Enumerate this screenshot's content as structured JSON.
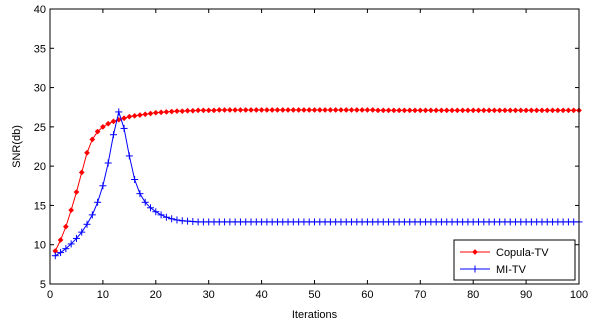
{
  "chart_data": {
    "type": "line",
    "xlabel": "Iterations",
    "ylabel": "SNR(db)",
    "xlim": [
      0,
      100
    ],
    "ylim": [
      5,
      40
    ],
    "xticks": [
      "0",
      "10",
      "20",
      "30",
      "40",
      "50",
      "60",
      "70",
      "80",
      "90",
      "100"
    ],
    "yticks": [
      "5",
      "10",
      "15",
      "20",
      "25",
      "30",
      "35",
      "40"
    ],
    "grid": false,
    "legend_position": "bottom-right",
    "series": [
      {
        "name": "Copula-TV",
        "color": "#ff0000",
        "marker": "diamond",
        "x": [
          1,
          2,
          3,
          4,
          5,
          6,
          7,
          8,
          9,
          10,
          11,
          12,
          13,
          14,
          15,
          16,
          17,
          18,
          19,
          20,
          21,
          22,
          23,
          24,
          25,
          26,
          27,
          28,
          29,
          30,
          31,
          32,
          33,
          34,
          35,
          36,
          37,
          38,
          39,
          40,
          41,
          42,
          43,
          44,
          45,
          46,
          47,
          48,
          49,
          50,
          51,
          52,
          53,
          54,
          55,
          56,
          57,
          58,
          59,
          60,
          61,
          62,
          63,
          64,
          65,
          66,
          67,
          68,
          69,
          70,
          71,
          72,
          73,
          74,
          75,
          76,
          77,
          78,
          79,
          80,
          81,
          82,
          83,
          84,
          85,
          86,
          87,
          88,
          89,
          90,
          91,
          92,
          93,
          94,
          95,
          96,
          97,
          98,
          99,
          100
        ],
        "y": [
          9.2,
          10.6,
          12.3,
          14.4,
          16.7,
          19.2,
          21.7,
          23.4,
          24.4,
          25.0,
          25.4,
          25.7,
          25.9,
          26.1,
          26.3,
          26.4,
          26.5,
          26.6,
          26.7,
          26.8,
          26.85,
          26.9,
          26.95,
          27.0,
          27.0,
          27.05,
          27.05,
          27.1,
          27.1,
          27.1,
          27.1,
          27.15,
          27.15,
          27.15,
          27.15,
          27.15,
          27.15,
          27.15,
          27.15,
          27.15,
          27.15,
          27.15,
          27.15,
          27.15,
          27.15,
          27.15,
          27.15,
          27.15,
          27.15,
          27.15,
          27.15,
          27.15,
          27.15,
          27.15,
          27.15,
          27.15,
          27.15,
          27.15,
          27.15,
          27.15,
          27.15,
          27.1,
          27.1,
          27.1,
          27.1,
          27.1,
          27.1,
          27.1,
          27.1,
          27.1,
          27.1,
          27.1,
          27.1,
          27.1,
          27.1,
          27.1,
          27.1,
          27.1,
          27.1,
          27.1,
          27.1,
          27.1,
          27.1,
          27.1,
          27.1,
          27.1,
          27.1,
          27.1,
          27.1,
          27.1,
          27.1,
          27.1,
          27.1,
          27.1,
          27.1,
          27.1,
          27.1,
          27.1,
          27.1,
          27.1
        ]
      },
      {
        "name": "MI-TV",
        "color": "#0000ff",
        "marker": "plus",
        "x": [
          1,
          2,
          3,
          4,
          5,
          6,
          7,
          8,
          9,
          10,
          11,
          12,
          13,
          14,
          15,
          16,
          17,
          18,
          19,
          20,
          21,
          22,
          23,
          24,
          25,
          26,
          27,
          28,
          29,
          30,
          31,
          32,
          33,
          34,
          35,
          36,
          37,
          38,
          39,
          40,
          41,
          42,
          43,
          44,
          45,
          46,
          47,
          48,
          49,
          50,
          51,
          52,
          53,
          54,
          55,
          56,
          57,
          58,
          59,
          60,
          61,
          62,
          63,
          64,
          65,
          66,
          67,
          68,
          69,
          70,
          71,
          72,
          73,
          74,
          75,
          76,
          77,
          78,
          79,
          80,
          81,
          82,
          83,
          84,
          85,
          86,
          87,
          88,
          89,
          90,
          91,
          92,
          93,
          94,
          95,
          96,
          97,
          98,
          99,
          100
        ],
        "y": [
          8.6,
          9.0,
          9.5,
          10.1,
          10.8,
          11.6,
          12.6,
          13.8,
          15.4,
          17.5,
          20.4,
          24.0,
          26.9,
          24.8,
          21.3,
          18.3,
          16.5,
          15.4,
          14.7,
          14.2,
          13.8,
          13.5,
          13.3,
          13.15,
          13.05,
          13.0,
          12.95,
          12.9,
          12.9,
          12.9,
          12.9,
          12.9,
          12.9,
          12.9,
          12.9,
          12.9,
          12.9,
          12.9,
          12.9,
          12.9,
          12.9,
          12.9,
          12.9,
          12.9,
          12.9,
          12.9,
          12.9,
          12.9,
          12.9,
          12.9,
          12.9,
          12.9,
          12.9,
          12.9,
          12.9,
          12.9,
          12.9,
          12.9,
          12.9,
          12.9,
          12.9,
          12.9,
          12.9,
          12.9,
          12.9,
          12.9,
          12.9,
          12.9,
          12.9,
          12.9,
          12.9,
          12.9,
          12.9,
          12.9,
          12.9,
          12.9,
          12.9,
          12.9,
          12.9,
          12.9,
          12.9,
          12.9,
          12.9,
          12.9,
          12.9,
          12.9,
          12.9,
          12.9,
          12.9,
          12.9,
          12.9,
          12.9,
          12.9,
          12.9,
          12.9,
          12.9,
          12.9,
          12.9,
          12.9,
          12.9
        ]
      }
    ]
  }
}
